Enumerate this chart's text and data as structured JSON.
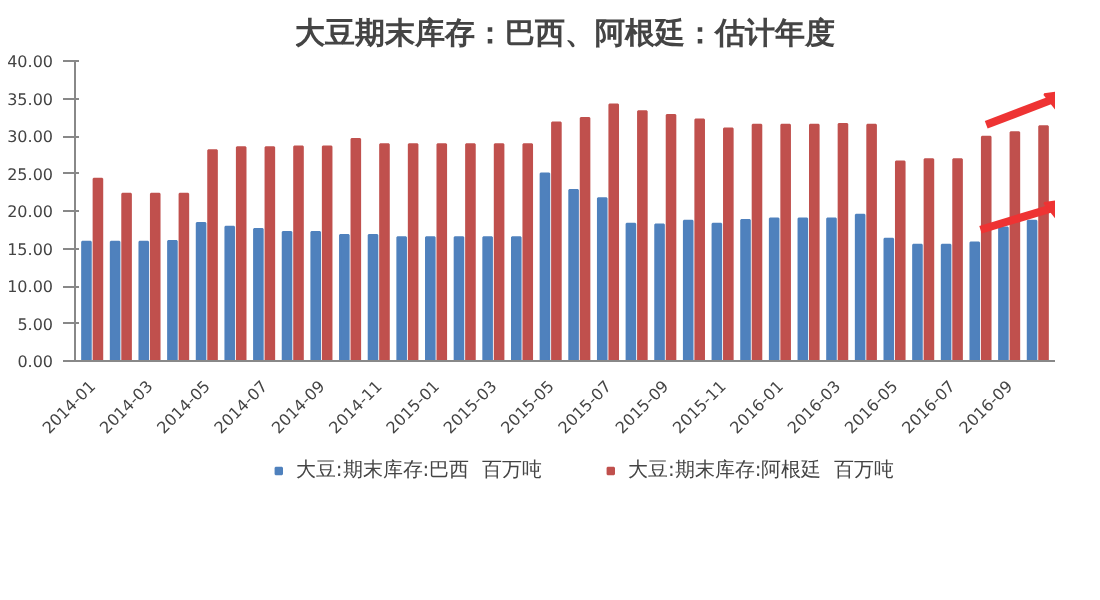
{
  "chart_data": {
    "type": "bar",
    "title": "大豆期末库存：巴西、阿根廷：估计年度",
    "categories": [
      "2014-01",
      null,
      "2014-03",
      null,
      "2014-05",
      null,
      "2014-07",
      null,
      "2014-09",
      null,
      "2014-11",
      null,
      "2015-01",
      null,
      "2015-03",
      null,
      "2015-05",
      null,
      "2015-07",
      null,
      "2015-09",
      null,
      "2015-11",
      null,
      "2016-01",
      null,
      "2016-03",
      null,
      "2016-05",
      null,
      "2016-07",
      null,
      "2016-09",
      null
    ],
    "series": [
      {
        "name": "大豆:期末库存:巴西  百万吨",
        "color": "#4f81bd",
        "values": [
          15.9,
          15.9,
          15.9,
          16.0,
          18.4,
          17.9,
          17.6,
          17.2,
          17.2,
          16.8,
          16.8,
          16.5,
          16.5,
          16.5,
          16.5,
          16.5,
          25.0,
          22.8,
          21.7,
          18.3,
          18.2,
          18.7,
          18.3,
          18.8,
          19.0,
          19.0,
          19.0,
          19.5,
          16.3,
          15.5,
          15.5,
          15.8,
          17.8,
          18.7
        ]
      },
      {
        "name": "大豆:期末库存:阿根廷  百万吨",
        "color": "#c0504d",
        "values": [
          24.3,
          22.3,
          22.3,
          22.3,
          28.1,
          28.5,
          28.5,
          28.6,
          28.6,
          29.6,
          28.9,
          28.9,
          28.9,
          28.9,
          28.9,
          28.9,
          31.8,
          32.4,
          34.2,
          33.3,
          32.8,
          32.2,
          31.0,
          31.5,
          31.5,
          31.5,
          31.6,
          31.5,
          26.6,
          26.9,
          26.9,
          29.9,
          30.5,
          31.3
        ]
      }
    ],
    "ylim": [
      0,
      40
    ],
    "yticks": [
      {
        "value": 0,
        "label": "0.00"
      },
      {
        "value": 5,
        "label": "5.00"
      },
      {
        "value": 10,
        "label": "10.00"
      },
      {
        "value": 15,
        "label": "15.00"
      },
      {
        "value": 20,
        "label": "20.00"
      },
      {
        "value": 25,
        "label": "25.00"
      },
      {
        "value": 30,
        "label": "30.00"
      },
      {
        "value": 35,
        "label": "35.00"
      },
      {
        "value": 40,
        "label": "40.00"
      }
    ],
    "grid": false,
    "legend": "bottom"
  }
}
